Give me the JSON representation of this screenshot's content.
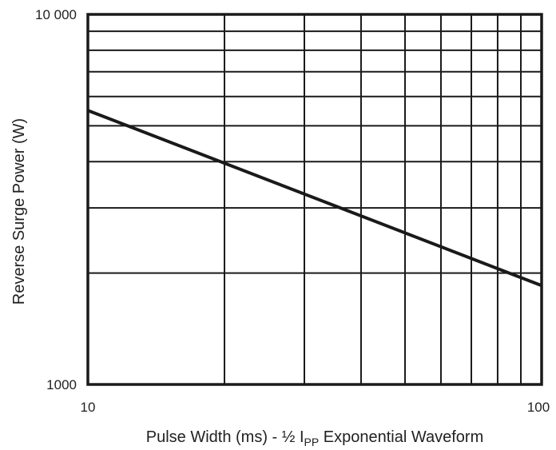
{
  "chart_data": {
    "type": "line",
    "x_scale": "log",
    "y_scale": "log",
    "xlim": [
      10,
      100
    ],
    "ylim": [
      1000,
      10000
    ],
    "grid": true,
    "x_ticks": [
      "10",
      "100"
    ],
    "y_ticks": [
      "1000",
      "10 000"
    ],
    "xlabel": {
      "prefix": "Pulse Width (ms) - ½ I",
      "subscript": "PP",
      "suffix": " Exponential Waveform"
    },
    "ylabel": "Reverse Surge Power (W)",
    "series": [
      {
        "x": [
          10,
          100
        ],
        "y": [
          5500,
          1850
        ]
      }
    ]
  }
}
